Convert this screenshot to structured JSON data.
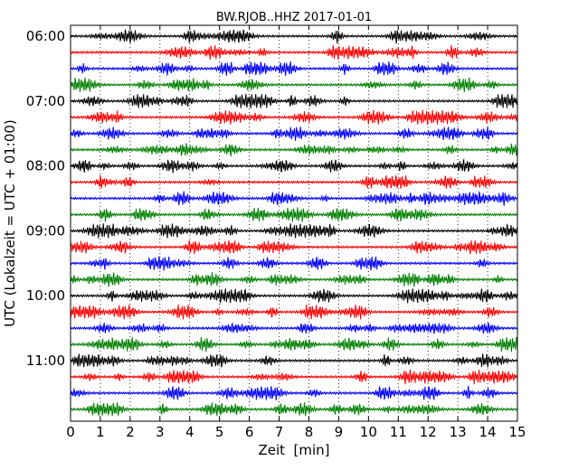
{
  "chart_data": {
    "type": "line",
    "title": "BW.RJOB..HHZ 2017-01-01",
    "xlabel": "Zeit  [min]",
    "ylabel": "UTC (Lokalzeit = UTC + 01:00)",
    "xlim": [
      0,
      15
    ],
    "x_ticks": [
      "0",
      "1",
      "2",
      "3",
      "4",
      "5",
      "6",
      "7",
      "8",
      "9",
      "10",
      "11",
      "12",
      "13",
      "14",
      "15"
    ],
    "y_ticks": [
      "06:00",
      "07:00",
      "08:00",
      "09:00",
      "10:00",
      "11:00"
    ],
    "trace_interval_minutes": 15,
    "trace_count": 24,
    "first_trace": "06:00",
    "color_cycle": [
      "#000000",
      "#ff0000",
      "#0000ff",
      "#008000"
    ],
    "grid": "vertical-dotted"
  }
}
